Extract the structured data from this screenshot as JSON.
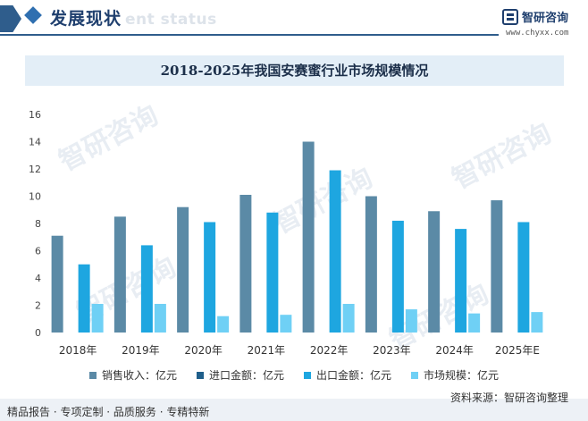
{
  "header": {
    "title": "发展现状",
    "subtitle": "ent status",
    "logo_name": "智研咨询",
    "logo_url": "www.chyxx.com"
  },
  "watermark": "智研咨询",
  "chart_data": {
    "type": "bar",
    "title": "2018-2025年我国安赛蜜行业市场规模情况",
    "categories": [
      "2018年",
      "2019年",
      "2020年",
      "2021年",
      "2022年",
      "2023年",
      "2024年",
      "2025年E"
    ],
    "ylim": [
      0,
      16
    ],
    "yticks": [
      0,
      2,
      4,
      6,
      8,
      10,
      12,
      14,
      16
    ],
    "grid": false,
    "legend_position": "bottom",
    "series": [
      {
        "name": "销售收入：亿元",
        "color": "#5b8aa6",
        "values": [
          7.1,
          8.5,
          9.2,
          10.1,
          14.0,
          10.0,
          8.9,
          9.7
        ]
      },
      {
        "name": "进口金额：亿元",
        "color": "#1f5f8b",
        "values": [
          0,
          0,
          0,
          0,
          0,
          0,
          0,
          0
        ]
      },
      {
        "name": "出口金额：亿元",
        "color": "#1ea6e0",
        "values": [
          5.0,
          6.4,
          8.1,
          8.8,
          11.9,
          8.2,
          7.6,
          8.1
        ]
      },
      {
        "name": "市场规模：亿元",
        "color": "#6fd0f5",
        "values": [
          2.1,
          2.1,
          1.2,
          1.3,
          2.1,
          1.7,
          1.4,
          1.5
        ]
      }
    ]
  },
  "footer": {
    "tags": "精品报告 · 专项定制 · 品质服务 · 专精特新",
    "source": "资料来源：智研咨询整理"
  }
}
